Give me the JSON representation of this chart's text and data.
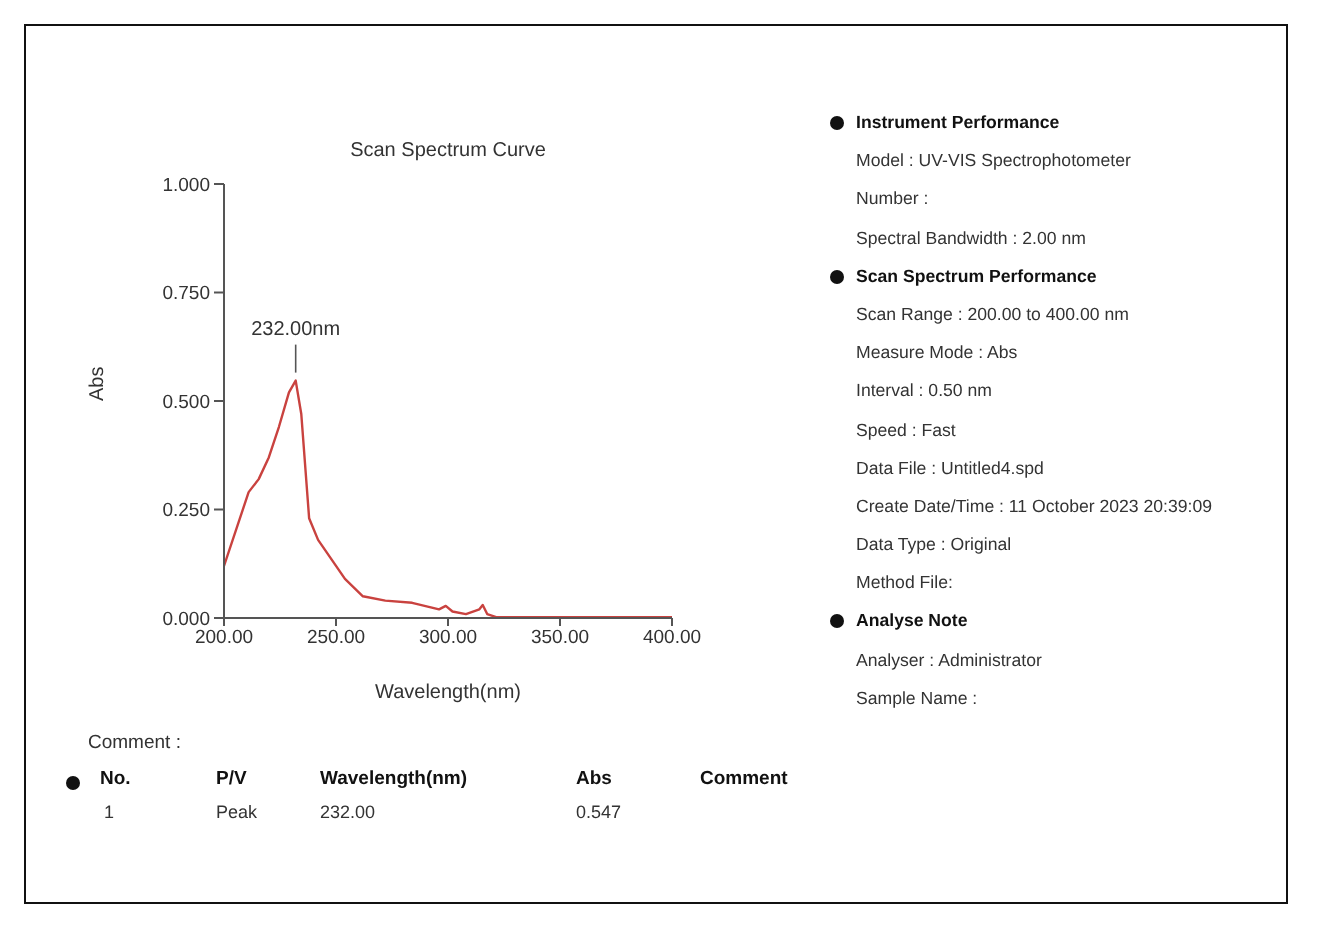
{
  "chart_data": {
    "type": "line",
    "title": "Scan Spectrum Curve",
    "xlabel": "Wavelength(nm)",
    "ylabel": "Abs",
    "x": [
      200,
      211,
      215.5,
      220,
      224.5,
      229,
      232,
      234.5,
      238,
      242,
      248,
      254,
      262,
      272,
      284,
      296,
      299,
      302,
      308,
      314,
      315.5,
      317.5,
      321.5,
      340,
      360,
      380,
      400
    ],
    "series": [
      {
        "color": "#c9423f",
        "values": [
          0.12,
          0.29,
          0.32,
          0.37,
          0.44,
          0.52,
          0.547,
          0.47,
          0.23,
          0.18,
          0.135,
          0.09,
          0.05,
          0.04,
          0.035,
          0.02,
          0.028,
          0.015,
          0.009,
          0.02,
          0.03,
          0.009,
          0.002,
          0.002,
          0.002,
          0.002,
          0.002
        ]
      }
    ],
    "xlim": [
      200,
      400
    ],
    "xticks": [
      {
        "value": 200,
        "label": "200.00"
      },
      {
        "value": 250,
        "label": "250.00"
      },
      {
        "value": 300,
        "label": "300.00"
      },
      {
        "value": 350,
        "label": "350.00"
      },
      {
        "value": 400,
        "label": "400.00"
      }
    ],
    "ylim": [
      0,
      1
    ],
    "yticks": [
      {
        "value": 0,
        "label": "0.000"
      },
      {
        "value": 0.25,
        "label": "0.250"
      },
      {
        "value": 0.5,
        "label": "0.500"
      },
      {
        "value": 0.75,
        "label": "0.750"
      },
      {
        "value": 1,
        "label": "1.000"
      }
    ],
    "marker": "none",
    "line_style": "solid",
    "annotations": [
      {
        "text": "232.00nm",
        "x": 232,
        "y": 0.547
      },
      "Instrument Performance",
      "Model : UV-VIS Spectrophotometer",
      "Number :",
      "Spectral Bandwidth : 2.00 nm",
      "Scan Spectrum Performance",
      "Scan Range : 200.00 to 400.00 nm",
      "Measure Mode : Abs",
      "Interval : 0.50 nm",
      "Speed : Fast",
      "Data File : Untitled4.spd",
      "Create Date/Time : 11 October 2023 20:39:09",
      "Data Type : Original",
      "Method File:",
      "Analyse Note",
      "Analyser : Administrator",
      "Sample Name :",
      "Comment :",
      "No.",
      "P/V",
      "Wavelength(nm)",
      "Abs",
      "Comment",
      "1",
      "Peak",
      "232.00",
      "0.547"
    ]
  }
}
